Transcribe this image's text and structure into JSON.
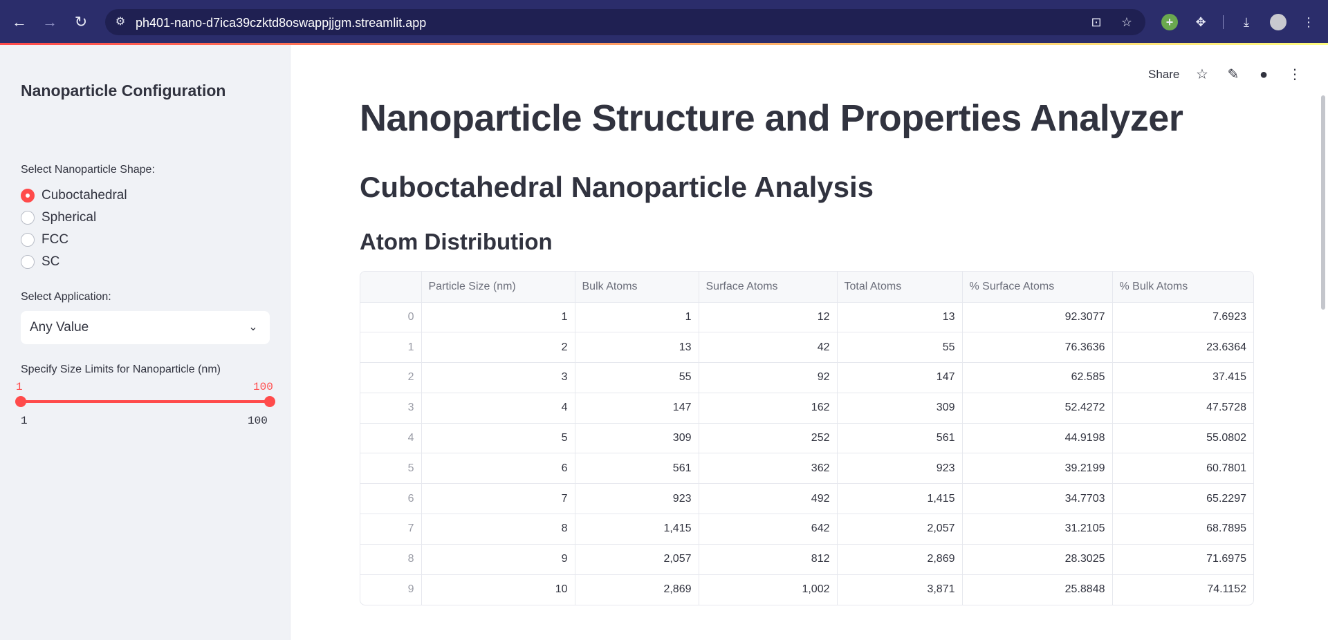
{
  "browser": {
    "url": "ph401-nano-d7ica39czktd8oswappjjgm.streamlit.app"
  },
  "toolbar": {
    "share_label": "Share"
  },
  "sidebar": {
    "title": "Nanoparticle Configuration",
    "shape_label": "Select Nanoparticle Shape:",
    "shapes": [
      "Cuboctahedral",
      "Spherical",
      "FCC",
      "SC"
    ],
    "selected_shape": "Cuboctahedral",
    "application_label": "Select Application:",
    "application_value": "Any Value",
    "size_label": "Specify Size Limits for Nanoparticle (nm)",
    "slider": {
      "low": "1",
      "high": "100",
      "min": "1",
      "max": "100"
    }
  },
  "main": {
    "title": "Nanoparticle Structure and Properties Analyzer",
    "subtitle": "Cuboctahedral Nanoparticle Analysis",
    "section": "Atom Distribution",
    "table": {
      "columns": [
        "",
        "Particle Size (nm)",
        "Bulk Atoms",
        "Surface Atoms",
        "Total Atoms",
        "% Surface Atoms",
        "% Bulk Atoms"
      ],
      "rows": [
        [
          "0",
          "1",
          "1",
          "12",
          "13",
          "92.3077",
          "7.6923"
        ],
        [
          "1",
          "2",
          "13",
          "42",
          "55",
          "76.3636",
          "23.6364"
        ],
        [
          "2",
          "3",
          "55",
          "92",
          "147",
          "62.585",
          "37.415"
        ],
        [
          "3",
          "4",
          "147",
          "162",
          "309",
          "52.4272",
          "47.5728"
        ],
        [
          "4",
          "5",
          "309",
          "252",
          "561",
          "44.9198",
          "55.0802"
        ],
        [
          "5",
          "6",
          "561",
          "362",
          "923",
          "39.2199",
          "60.7801"
        ],
        [
          "6",
          "7",
          "923",
          "492",
          "1,415",
          "34.7703",
          "65.2297"
        ],
        [
          "7",
          "8",
          "1,415",
          "642",
          "2,057",
          "31.2105",
          "68.7895"
        ],
        [
          "8",
          "9",
          "2,057",
          "812",
          "2,869",
          "28.3025",
          "71.6975"
        ],
        [
          "9",
          "10",
          "2,869",
          "1,002",
          "3,871",
          "25.8848",
          "74.1152"
        ]
      ]
    }
  },
  "colors": {
    "accent": "#ff4b4b",
    "sidebar_bg": "#f0f2f6",
    "chrome_bg": "#2b2d6b",
    "text": "#31333f"
  }
}
